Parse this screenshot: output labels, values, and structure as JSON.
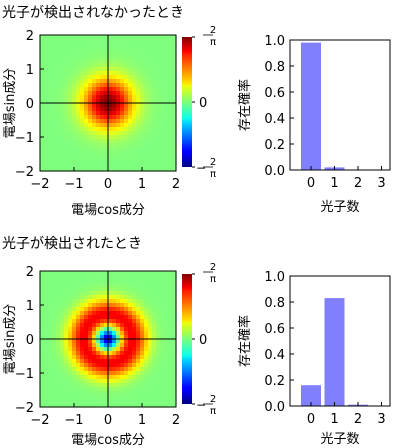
{
  "chart_data": [
    {
      "type": "heatmap",
      "title": "光子が検出されなかったとき",
      "xlabel": "電場cos成分",
      "ylabel": "電場sin成分",
      "xlim": [
        -2,
        2
      ],
      "ylim": [
        -2,
        2
      ],
      "xticks": [
        "−2",
        "−1",
        "0",
        "1",
        "2"
      ],
      "yticks": [
        "−2",
        "−1",
        "0",
        "1",
        "2"
      ],
      "colorbar": {
        "range": [
          -0.6366,
          0.6366
        ],
        "ticks": [
          {
            "value": 0.6366,
            "num": "2",
            "den": "π",
            "sign": ""
          },
          {
            "value": 0,
            "label": "0"
          },
          {
            "value": -0.6366,
            "num": "2",
            "den": "π",
            "sign": "−"
          }
        ]
      },
      "function": "gaussian",
      "peak_value": 0.6366,
      "sigma": 0.5
    },
    {
      "type": "bar",
      "xlabel": "光子数",
      "ylabel": "存在確率",
      "categories": [
        "0",
        "1",
        "2",
        "3"
      ],
      "values": [
        0.98,
        0.02,
        0,
        0
      ],
      "ylim": [
        0,
        1.0
      ],
      "yticks": [
        "0.0",
        "0.2",
        "0.4",
        "0.6",
        "0.8",
        "1.0"
      ],
      "bar_color": "#8080ff"
    },
    {
      "type": "heatmap",
      "title": "光子が検出されたとき",
      "xlabel": "電場cos成分",
      "ylabel": "電場sin成分",
      "xlim": [
        -2,
        2
      ],
      "ylim": [
        -2,
        2
      ],
      "xticks": [
        "−2",
        "−1",
        "0",
        "1",
        "2"
      ],
      "yticks": [
        "−2",
        "−1",
        "0",
        "1",
        "2"
      ],
      "colorbar": {
        "range": [
          -0.6366,
          0.6366
        ],
        "ticks": [
          {
            "value": 0.6366,
            "num": "2",
            "den": "π",
            "sign": ""
          },
          {
            "value": 0,
            "label": "0"
          },
          {
            "value": -0.6366,
            "num": "2",
            "den": "π",
            "sign": "−"
          }
        ]
      },
      "function": "ring",
      "center_value": -0.6,
      "ring_peak_value": 0.5,
      "ring_radius": 0.7
    },
    {
      "type": "bar",
      "xlabel": "光子数",
      "ylabel": "存在確率",
      "categories": [
        "0",
        "1",
        "2",
        "3"
      ],
      "values": [
        0.16,
        0.83,
        0.01,
        0
      ],
      "ylim": [
        0,
        1.0
      ],
      "yticks": [
        "0.0",
        "0.2",
        "0.4",
        "0.6",
        "0.8",
        "1.0"
      ],
      "bar_color": "#8080ff"
    }
  ]
}
